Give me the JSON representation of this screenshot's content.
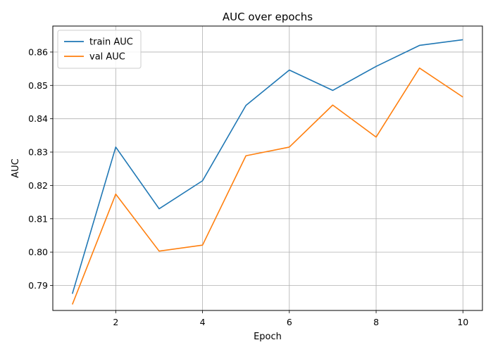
{
  "chart_data": {
    "type": "line",
    "title": "AUC over epochs",
    "xlabel": "Epoch",
    "ylabel": "AUC",
    "xlim": [
      0.55,
      10.45
    ],
    "ylim": [
      0.7825,
      0.8678
    ],
    "xticks": [
      2,
      4,
      6,
      8,
      10
    ],
    "yticks": [
      0.79,
      0.8,
      0.81,
      0.82,
      0.83,
      0.84,
      0.85,
      0.86
    ],
    "ytick_labels": [
      "0.79",
      "0.80",
      "0.81",
      "0.82",
      "0.83",
      "0.84",
      "0.85",
      "0.86"
    ],
    "grid": true,
    "legend": "top-left",
    "x": [
      1,
      2,
      3,
      4,
      5,
      6,
      7,
      8,
      9,
      10
    ],
    "series": [
      {
        "name": "train AUC",
        "color": "#1f77b4",
        "values": [
          0.7875,
          0.8315,
          0.813,
          0.8214,
          0.844,
          0.8546,
          0.8485,
          0.8557,
          0.862,
          0.8637
        ]
      },
      {
        "name": "val AUC",
        "color": "#ff7f0e",
        "values": [
          0.7843,
          0.8174,
          0.8003,
          0.8021,
          0.8289,
          0.8315,
          0.8441,
          0.8345,
          0.8552,
          0.8465
        ]
      }
    ]
  }
}
